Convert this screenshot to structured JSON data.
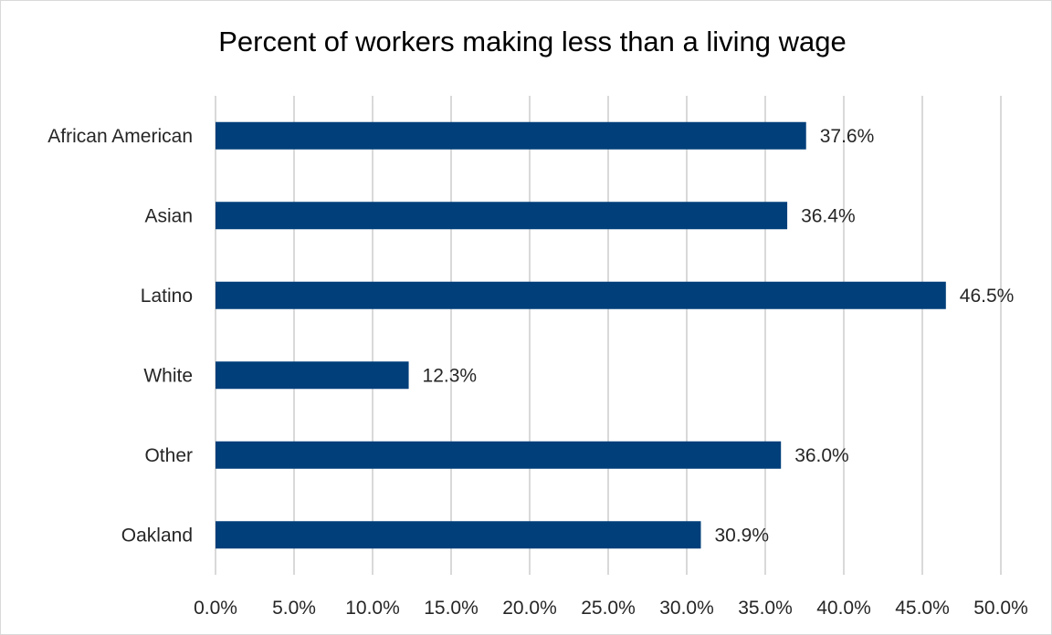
{
  "chart_data": {
    "type": "bar",
    "orientation": "horizontal",
    "title": "Percent of workers making less than a living wage",
    "categories": [
      "African American",
      "Asian",
      "Latino",
      "White",
      "Other",
      "Oakland"
    ],
    "values": [
      37.6,
      36.4,
      46.5,
      12.3,
      36.0,
      30.9
    ],
    "data_labels": [
      "37.6%",
      "36.4%",
      "46.5%",
      "12.3%",
      "36.0%",
      "30.9%"
    ],
    "xlim": [
      0,
      50
    ],
    "x_ticks": [
      0,
      5,
      10,
      15,
      20,
      25,
      30,
      35,
      40,
      45,
      50
    ],
    "x_tick_labels": [
      "0.0%",
      "5.0%",
      "10.0%",
      "15.0%",
      "20.0%",
      "25.0%",
      "30.0%",
      "35.0%",
      "40.0%",
      "45.0%",
      "50.0%"
    ],
    "xlabel": "",
    "ylabel": "",
    "grid": "vertical",
    "legend": "none",
    "bar_color": "#003f7a",
    "grid_color": "#d9d9d9"
  }
}
